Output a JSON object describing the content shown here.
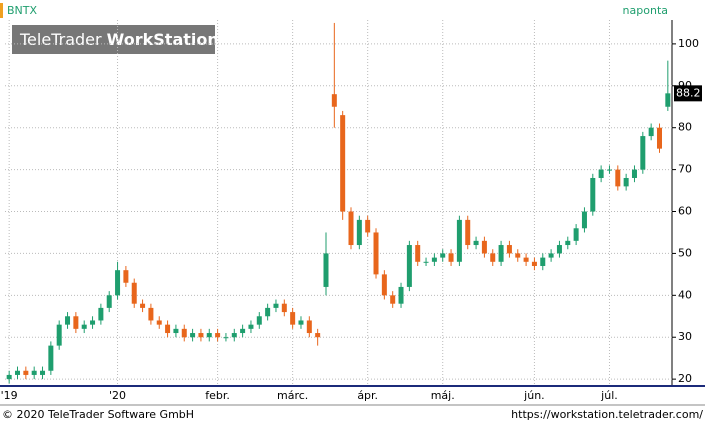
{
  "chart_data": {
    "type": "candlestick",
    "title": "BNTX",
    "period": "naponta",
    "watermark": {
      "brand": "TeleTrader",
      "product": "WorkStation"
    },
    "footer": {
      "copyright": "© 2020 TeleTrader Software GmbH",
      "url": "https://workstation.teletrader.com/"
    },
    "categories": [
      "'19",
      null,
      null,
      null,
      null,
      null,
      null,
      null,
      null,
      null,
      null,
      null,
      null,
      "'20",
      null,
      null,
      null,
      null,
      null,
      null,
      null,
      null,
      null,
      null,
      null,
      "febr.",
      null,
      null,
      null,
      null,
      null,
      null,
      null,
      null,
      "márc.",
      null,
      null,
      null,
      null,
      null,
      null,
      null,
      null,
      "ápr.",
      null,
      null,
      null,
      null,
      null,
      null,
      null,
      null,
      "máj.",
      null,
      null,
      null,
      null,
      null,
      null,
      null,
      null,
      null,
      null,
      "jún.",
      null,
      null,
      null,
      null,
      null,
      null,
      null,
      null,
      "júl.",
      null,
      null,
      null,
      null,
      null,
      null,
      null
    ],
    "open": [
      20,
      21,
      22,
      21,
      21,
      22,
      28,
      33,
      35,
      32,
      33,
      34,
      37,
      40,
      46,
      43,
      38,
      37,
      34,
      33,
      31,
      32,
      30,
      31,
      30,
      31,
      30,
      30,
      31,
      32,
      33,
      35,
      37,
      38,
      36,
      33,
      34,
      31,
      42,
      88,
      83,
      60,
      52,
      58,
      55,
      45,
      40,
      38,
      42,
      52,
      48,
      48,
      49,
      50,
      48,
      58,
      52,
      53,
      50,
      48,
      52,
      50,
      49,
      48,
      47,
      49,
      50,
      52,
      53,
      56,
      60,
      68,
      70,
      70,
      66,
      68,
      70,
      78,
      80,
      85
    ],
    "high": [
      22,
      23,
      23,
      23,
      23,
      29,
      34,
      36,
      36,
      34,
      35,
      38,
      41,
      48,
      47,
      44,
      39,
      38,
      35,
      34,
      33,
      33,
      32,
      32,
      32,
      32,
      31,
      32,
      33,
      34,
      36,
      38,
      39,
      39,
      37,
      35,
      35,
      32,
      55,
      105,
      84,
      61,
      59,
      59,
      56,
      46,
      41,
      43,
      53,
      53,
      49,
      50,
      51,
      51,
      59,
      59,
      54,
      54,
      51,
      53,
      53,
      51,
      50,
      49,
      50,
      51,
      53,
      54,
      57,
      61,
      69,
      71,
      71,
      71,
      69,
      71,
      79,
      81,
      81,
      96
    ],
    "low": [
      19,
      20,
      20,
      20,
      20,
      21,
      27,
      32,
      31,
      31,
      32,
      33,
      36,
      39,
      42,
      37,
      36,
      33,
      32,
      30,
      30,
      29,
      29,
      29,
      29,
      29,
      29,
      29,
      30,
      31,
      32,
      34,
      36,
      35,
      32,
      32,
      30,
      28,
      40,
      80,
      58,
      51,
      51,
      54,
      44,
      39,
      37,
      37,
      41,
      47,
      47,
      47,
      48,
      47,
      47,
      51,
      51,
      49,
      47,
      47,
      49,
      48,
      47,
      46,
      46,
      48,
      49,
      51,
      52,
      55,
      59,
      67,
      69,
      65,
      65,
      67,
      69,
      77,
      74,
      84
    ],
    "close": [
      21,
      22,
      21,
      22,
      22,
      28,
      33,
      35,
      32,
      33,
      34,
      37,
      40,
      46,
      43,
      38,
      37,
      34,
      33,
      31,
      32,
      30,
      31,
      30,
      31,
      30,
      30,
      31,
      32,
      33,
      35,
      37,
      38,
      36,
      33,
      34,
      31,
      30,
      50,
      85,
      60,
      52,
      58,
      55,
      45,
      40,
      38,
      42,
      52,
      48,
      48,
      49,
      50,
      48,
      58,
      52,
      53,
      50,
      48,
      52,
      50,
      49,
      48,
      47,
      49,
      50,
      52,
      53,
      56,
      60,
      68,
      70,
      70,
      66,
      68,
      70,
      78,
      80,
      75,
      88.2
    ],
    "last_price": 88.2,
    "up_color": "#1f9e6e",
    "down_color": "#e8661c",
    "ylim": [
      18.6,
      105.7
    ],
    "yticks": [
      20,
      30,
      40,
      50,
      60,
      70,
      80,
      90,
      100
    ],
    "grid": true
  }
}
